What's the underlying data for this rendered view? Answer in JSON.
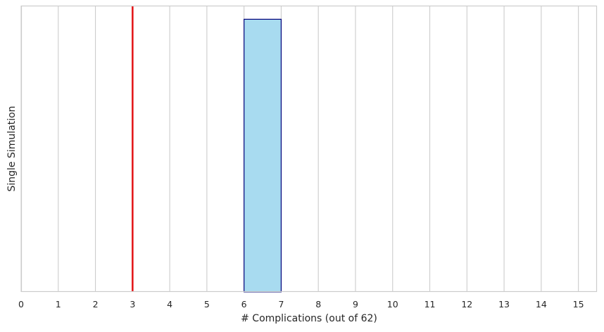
{
  "chart_data": {
    "type": "bar",
    "title": "",
    "xlabel": "# Complications (out of 62)",
    "ylabel": "Single Simulation",
    "xlim": [
      0,
      15.5
    ],
    "ylim": [
      0,
      1.05
    ],
    "xticks": [
      0,
      1,
      2,
      3,
      4,
      5,
      6,
      7,
      8,
      9,
      10,
      11,
      12,
      13,
      14,
      15
    ],
    "grid": "vertical",
    "bins": [
      {
        "x_start": 6,
        "x_end": 7,
        "count": 1
      }
    ],
    "reference_lines": [
      {
        "x": 3,
        "color": "#e41a1c"
      }
    ],
    "colors": {
      "bar_fill": "#a8dbf0",
      "bar_edge": "#00007a",
      "grid": "#cccccc",
      "spine": "#cccccc"
    }
  }
}
